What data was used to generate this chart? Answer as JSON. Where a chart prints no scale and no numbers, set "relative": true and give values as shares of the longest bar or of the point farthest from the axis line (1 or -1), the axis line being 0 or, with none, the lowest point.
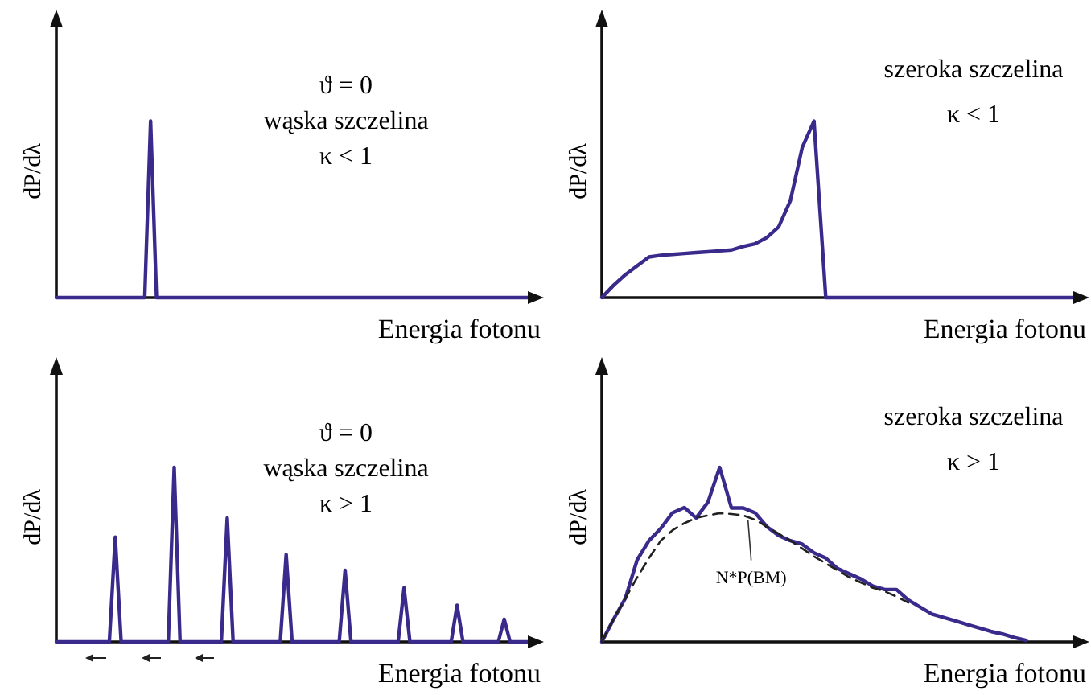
{
  "chart_data": [
    {
      "type": "line",
      "relative": true,
      "xlabel": "Energia fotonu",
      "ylabel": "dP/dλ",
      "annotations": [
        "ϑ = 0",
        "wąska szczelina",
        "κ < 1"
      ],
      "categories": [
        null,
        null,
        null,
        null,
        null,
        null,
        null,
        null,
        null,
        null,
        null,
        null,
        null,
        null,
        null,
        null,
        null,
        null,
        null,
        null,
        null,
        null,
        null,
        null,
        null,
        null,
        null,
        null,
        null,
        null,
        null,
        null,
        null,
        null,
        null,
        null,
        null,
        null,
        null,
        null,
        null,
        null,
        null,
        null,
        null,
        null,
        null,
        null,
        null,
        null,
        null,
        null,
        null,
        null,
        null,
        null,
        null,
        null,
        null,
        null,
        null,
        null,
        null,
        null,
        null,
        null,
        null,
        null,
        null,
        null,
        null,
        null,
        null,
        null,
        null,
        null,
        null,
        null,
        null,
        null,
        null
      ],
      "series": [
        {
          "color": "#3a2a8c",
          "values": [
            0,
            0,
            0,
            0,
            0,
            0,
            0,
            0,
            0,
            0,
            0,
            0,
            0,
            0,
            0,
            0,
            1,
            0,
            0,
            0,
            0,
            0,
            0,
            0,
            0,
            0,
            0,
            0,
            0,
            0,
            0,
            0,
            0,
            0,
            0,
            0,
            0,
            0,
            0,
            0,
            0,
            0,
            0,
            0,
            0,
            0,
            0,
            0,
            0,
            0,
            0,
            0,
            0,
            0,
            0,
            0,
            0,
            0,
            0,
            0,
            0,
            0,
            0,
            0,
            0,
            0,
            0,
            0,
            0,
            0,
            0,
            0,
            0,
            0,
            0,
            0,
            0,
            0,
            0,
            0,
            0
          ]
        }
      ]
    },
    {
      "type": "line",
      "relative": true,
      "xlabel": "Energia fotonu",
      "ylabel": "dP/dλ",
      "annotations": [
        "szeroka szczelina",
        "κ < 1"
      ],
      "categories": [
        null,
        null,
        null,
        null,
        null,
        null,
        null,
        null,
        null,
        null,
        null,
        null,
        null,
        null,
        null,
        null,
        null,
        null,
        null,
        null,
        null,
        null,
        null,
        null,
        null,
        null,
        null,
        null,
        null,
        null,
        null,
        null,
        null,
        null,
        null,
        null,
        null,
        null,
        null,
        null,
        null
      ],
      "series": [
        {
          "color": "#3a2a8c",
          "values": [
            0,
            0.07,
            0.13,
            0.18,
            0.23,
            0.24,
            0.245,
            0.25,
            0.255,
            0.26,
            0.265,
            0.27,
            0.29,
            0.305,
            0.34,
            0.4,
            0.55,
            0.85,
            1,
            0,
            0,
            0,
            0,
            0,
            0,
            0,
            0,
            0,
            0,
            0,
            0,
            0,
            0,
            0,
            0,
            0,
            0,
            0,
            0,
            0,
            0
          ]
        }
      ]
    },
    {
      "type": "line",
      "relative": true,
      "xlabel": "Energia fotonu",
      "ylabel": "dP/dλ",
      "annotations": [
        "ϑ = 0",
        "wąska szczelina",
        "κ > 1"
      ],
      "categories": [
        null,
        null,
        null,
        null,
        null,
        null,
        null,
        null,
        null,
        null,
        null,
        null,
        null,
        null,
        null,
        null,
        null,
        null,
        null,
        null,
        null,
        null,
        null,
        null,
        null,
        null,
        null,
        null,
        null,
        null,
        null,
        null,
        null,
        null,
        null,
        null,
        null,
        null,
        null,
        null,
        null,
        null,
        null,
        null,
        null,
        null,
        null,
        null,
        null,
        null,
        null,
        null,
        null,
        null,
        null,
        null,
        null,
        null,
        null,
        null,
        null,
        null,
        null,
        null,
        null,
        null,
        null,
        null,
        null,
        null,
        null,
        null,
        null,
        null,
        null,
        null,
        null,
        null,
        null,
        null,
        null
      ],
      "series": [
        {
          "color": "#3a2a8c",
          "values": [
            0,
            0,
            0,
            0,
            0,
            0,
            0,
            0,
            0,
            0,
            0.6,
            0,
            0,
            0,
            0,
            0,
            0,
            0,
            0,
            0,
            1,
            0,
            0,
            0,
            0,
            0,
            0,
            0,
            0,
            0.71,
            0,
            0,
            0,
            0,
            0,
            0,
            0,
            0,
            0,
            0.5,
            0,
            0,
            0,
            0,
            0,
            0,
            0,
            0,
            0,
            0.41,
            0,
            0,
            0,
            0,
            0,
            0,
            0,
            0,
            0,
            0.31,
            0,
            0,
            0,
            0,
            0,
            0,
            0,
            0,
            0.21,
            0,
            0,
            0,
            0,
            0,
            0,
            0,
            0.13,
            0,
            0,
            0,
            0
          ]
        }
      ]
    },
    {
      "type": "line",
      "relative": true,
      "xlabel": "Energia fotonu",
      "ylabel": "dP/dλ",
      "annotations": [
        "szeroka szczelina",
        "κ > 1",
        {
          "text": "N*P(BM)",
          "y": 0.725
        }
      ],
      "categories": [
        null,
        null,
        null,
        null,
        null,
        null,
        null,
        null,
        null,
        null,
        null,
        null,
        null,
        null,
        null,
        null,
        null,
        null,
        null,
        null,
        null,
        null,
        null,
        null,
        null,
        null,
        null,
        null,
        null,
        null,
        null,
        null,
        null,
        null,
        null,
        null,
        null,
        null,
        null,
        null,
        null
      ],
      "series": [
        {
          "color": "#3a2a8c",
          "values": [
            0,
            0.13,
            0.25,
            0.47,
            0.58,
            0.65,
            0.74,
            0.77,
            0.71,
            0.8,
            1,
            0.767,
            0.767,
            0.74,
            0.66,
            0.61,
            0.58,
            0.56,
            0.51,
            0.48,
            0.42,
            0.39,
            0.36,
            0.32,
            0.3,
            0.3,
            0.24,
            0.2,
            0.16,
            0.14,
            0.12,
            0.1,
            0.08,
            0.06,
            0.045,
            0.025,
            0.009,
            null,
            null,
            null,
            null
          ]
        },
        {
          "color": "#222222",
          "line_style": "dashed",
          "values": [
            0,
            0.13,
            0.25,
            0.37,
            0.48,
            0.58,
            0.64,
            0.68,
            0.71,
            0.725,
            0.738,
            0.733,
            0.725,
            0.7,
            0.66,
            0.62,
            0.58,
            0.535,
            0.49,
            0.45,
            0.41,
            0.37,
            0.34,
            0.31,
            0.29,
            0.26,
            0.225,
            null,
            null,
            null,
            null,
            null,
            null,
            null,
            null,
            null,
            null,
            null,
            null,
            null,
            null
          ]
        }
      ]
    }
  ]
}
